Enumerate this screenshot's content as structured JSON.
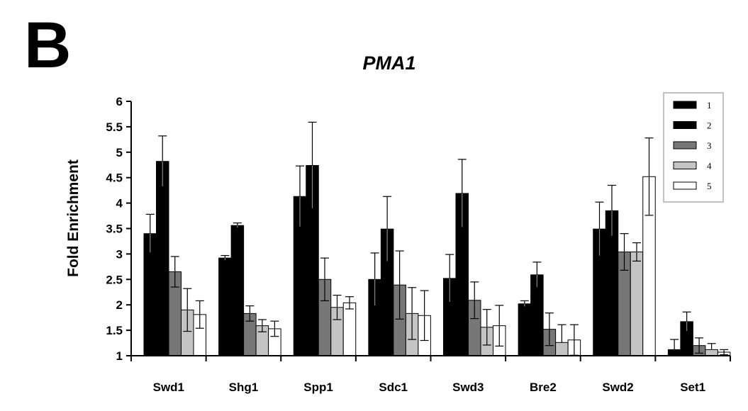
{
  "panel_label": "B",
  "chart_data": {
    "type": "bar",
    "title": "PMA1",
    "xlabel": "",
    "ylabel": "Fold Enrichment",
    "ylim": [
      1,
      6
    ],
    "yticks": [
      "1",
      "1.5",
      "2",
      "2.5",
      "3",
      "3.5",
      "4",
      "4.5",
      "5",
      "5.5",
      "6"
    ],
    "grid": false,
    "legend_position": "top-right",
    "categories": [
      "Swd1",
      "Shg1",
      "Spp1",
      "Sdc1",
      "Swd3",
      "Bre2",
      "Swd2",
      "Set1"
    ],
    "series": [
      {
        "name": "1",
        "color": "#000000",
        "values": [
          3.4,
          2.92,
          4.13,
          2.5,
          2.52,
          2.02,
          3.49,
          1.12
        ],
        "errors": [
          0.38,
          0.05,
          0.6,
          0.52,
          0.47,
          0.06,
          0.53,
          0.2
        ]
      },
      {
        "name": "2",
        "color": "#000000",
        "values": [
          4.82,
          3.56,
          4.74,
          3.49,
          4.19,
          2.59,
          3.85,
          1.67
        ],
        "errors": [
          0.5,
          0.05,
          0.85,
          0.64,
          0.67,
          0.25,
          0.5,
          0.19
        ]
      },
      {
        "name": "3",
        "color": "#777777",
        "values": [
          2.65,
          1.83,
          2.5,
          2.39,
          2.09,
          1.52,
          3.04,
          1.2
        ],
        "errors": [
          0.3,
          0.15,
          0.42,
          0.67,
          0.36,
          0.32,
          0.36,
          0.15
        ]
      },
      {
        "name": "4",
        "color": "#c4c4c4",
        "values": [
          1.9,
          1.59,
          1.95,
          1.83,
          1.56,
          1.26,
          3.04,
          1.12
        ],
        "errors": [
          0.42,
          0.12,
          0.24,
          0.51,
          0.35,
          0.35,
          0.18,
          0.12
        ]
      },
      {
        "name": "5",
        "color": "#ffffff",
        "values": [
          1.81,
          1.53,
          2.04,
          1.79,
          1.59,
          1.31,
          4.52,
          1.07
        ],
        "errors": [
          0.27,
          0.15,
          0.12,
          0.49,
          0.4,
          0.3,
          0.76,
          0.05
        ]
      }
    ]
  }
}
